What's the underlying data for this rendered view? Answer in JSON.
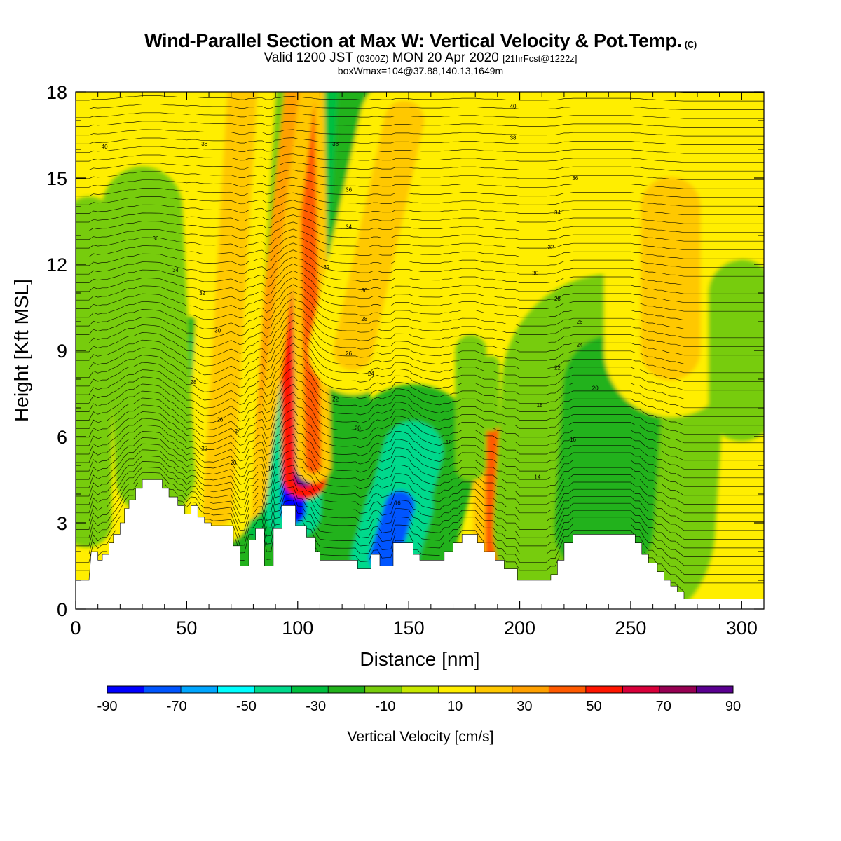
{
  "title": "Wind-Parallel Section at Max W: Vertical Velocity & Pot.Temp.",
  "copyright_mark": "(C)",
  "subtitle": {
    "valid": "Valid 1200 JST",
    "utc": "(0300Z)",
    "date": "MON 20 Apr 2020",
    "forecast": "[21hrFcst@1222z]"
  },
  "box_info": "boxWmax=104@37.88,140.13,1649m",
  "chart_data": {
    "type": "heatmap",
    "xlabel": "Distance [nm]",
    "ylabel": "Height [Kft MSL]",
    "xlim": [
      0,
      310
    ],
    "ylim": [
      0,
      18
    ],
    "x_ticks": [
      0,
      50,
      100,
      150,
      200,
      250,
      300
    ],
    "y_ticks": [
      0,
      3,
      6,
      9,
      12,
      15,
      18
    ],
    "colorbar": {
      "label": "Vertical Velocity [cm/s]",
      "ticks": [
        -90,
        -70,
        -50,
        -30,
        -10,
        10,
        30,
        50,
        70,
        90
      ],
      "bounds": [
        -90,
        90
      ],
      "colors": [
        "#0000ff",
        "#0055ff",
        "#00a6ff",
        "#00ffff",
        "#00d98c",
        "#00bf3f",
        "#22b21c",
        "#77cc0c",
        "#c7e800",
        "#ffee00",
        "#ffc800",
        "#ffa000",
        "#ff5a00",
        "#ff1500",
        "#d8003a",
        "#960052",
        "#5a0090"
      ]
    },
    "terrain_kft": [
      [
        0,
        1.0
      ],
      [
        6,
        1.0
      ],
      [
        7,
        2.0
      ],
      [
        10,
        2.0
      ],
      [
        10,
        1.7
      ],
      [
        12,
        1.7
      ],
      [
        12,
        1.9
      ],
      [
        15,
        1.9
      ],
      [
        15,
        2.3
      ],
      [
        17,
        2.3
      ],
      [
        17,
        2.6
      ],
      [
        20,
        2.6
      ],
      [
        20,
        3.0
      ],
      [
        22,
        3.0
      ],
      [
        22,
        3.5
      ],
      [
        24,
        3.5
      ],
      [
        24,
        3.8
      ],
      [
        27,
        3.8
      ],
      [
        27,
        4.2
      ],
      [
        30,
        4.2
      ],
      [
        30,
        4.5
      ],
      [
        39,
        4.5
      ],
      [
        39,
        4.2
      ],
      [
        42,
        4.2
      ],
      [
        42,
        3.9
      ],
      [
        46,
        3.9
      ],
      [
        46,
        3.6
      ],
      [
        49,
        3.6
      ],
      [
        49,
        3.3
      ],
      [
        52,
        3.3
      ],
      [
        52,
        3.6
      ],
      [
        55,
        3.6
      ],
      [
        55,
        3.2
      ],
      [
        58,
        3.2
      ],
      [
        58,
        3.0
      ],
      [
        61,
        3.0
      ],
      [
        61,
        2.9
      ],
      [
        71,
        2.9
      ],
      [
        71,
        2.2
      ],
      [
        74,
        2.2
      ],
      [
        74,
        1.5
      ],
      [
        78,
        1.5
      ],
      [
        78,
        2.4
      ],
      [
        81,
        2.4
      ],
      [
        81,
        2.8
      ],
      [
        85,
        2.8
      ],
      [
        85,
        1.5
      ],
      [
        89,
        1.5
      ],
      [
        89,
        2.8
      ],
      [
        93,
        2.8
      ],
      [
        93,
        3.6
      ],
      [
        99,
        3.6
      ],
      [
        99,
        2.9
      ],
      [
        104,
        2.9
      ],
      [
        104,
        2.5
      ],
      [
        108,
        2.5
      ],
      [
        108,
        2.0
      ],
      [
        110,
        2.0
      ],
      [
        110,
        1.7
      ],
      [
        127,
        1.7
      ],
      [
        127,
        1.4
      ],
      [
        133,
        1.4
      ],
      [
        133,
        1.9
      ],
      [
        137,
        1.9
      ],
      [
        137,
        1.5
      ],
      [
        143,
        1.5
      ],
      [
        143,
        2.3
      ],
      [
        152,
        2.3
      ],
      [
        152,
        1.9
      ],
      [
        155,
        1.9
      ],
      [
        155,
        1.7
      ],
      [
        166,
        1.7
      ],
      [
        166,
        2.0
      ],
      [
        170,
        2.0
      ],
      [
        170,
        2.3
      ],
      [
        174,
        2.3
      ],
      [
        174,
        2.6
      ],
      [
        181,
        2.6
      ],
      [
        181,
        2.3
      ],
      [
        184,
        2.3
      ],
      [
        184,
        2.0
      ],
      [
        189,
        2.0
      ],
      [
        189,
        1.7
      ],
      [
        193,
        1.7
      ],
      [
        193,
        1.4
      ],
      [
        199,
        1.4
      ],
      [
        199,
        1.0
      ],
      [
        214,
        1.0
      ],
      [
        214,
        1.2
      ],
      [
        217,
        1.2
      ],
      [
        217,
        1.7
      ],
      [
        220,
        1.7
      ],
      [
        220,
        2.3
      ],
      [
        224,
        2.3
      ],
      [
        224,
        2.6
      ],
      [
        252,
        2.6
      ],
      [
        252,
        2.3
      ],
      [
        255,
        2.3
      ],
      [
        255,
        1.9
      ],
      [
        258,
        1.9
      ],
      [
        258,
        1.6
      ],
      [
        262,
        1.6
      ],
      [
        262,
        1.3
      ],
      [
        265,
        1.3
      ],
      [
        265,
        1.0
      ],
      [
        268,
        1.0
      ],
      [
        268,
        0.8
      ],
      [
        271,
        0.8
      ],
      [
        271,
        0.6
      ],
      [
        274,
        0.6
      ],
      [
        274,
        0.35
      ],
      [
        310,
        0.35
      ]
    ],
    "vertical_velocity_features_cm_s": [
      {
        "x0": 90,
        "z0": 3.6,
        "x1": 100,
        "z1": 18,
        "w": 80,
        "value": -35
      },
      {
        "x0": 98,
        "z0": 3.4,
        "x1": 99,
        "z1": 8.5,
        "w": 25,
        "value": -80
      },
      {
        "x0": 103,
        "z0": 4.6,
        "x1": 101,
        "z1": 18,
        "w": 20,
        "value": 104
      },
      {
        "x0": 107,
        "z0": 5.0,
        "x1": 104,
        "z1": 18,
        "w": 16,
        "value": 45
      },
      {
        "x0": 73,
        "z0": 4.0,
        "x1": 95,
        "z1": 18,
        "w": 26,
        "value": 30
      },
      {
        "x0": 70,
        "z0": 5.2,
        "x1": 77,
        "z1": 9.5,
        "w": 9,
        "value": 40
      },
      {
        "x0": 62,
        "z0": 3.0,
        "x1": 82,
        "z1": 18,
        "w": 24,
        "value": -25
      },
      {
        "x0": 56,
        "z0": 3.4,
        "x1": 50,
        "z1": 9.0,
        "w": 30,
        "value": -35
      },
      {
        "x0": 64,
        "z0": 3.4,
        "x1": 75,
        "z1": 18,
        "w": 30,
        "value": 25
      },
      {
        "x0": 36,
        "z0": 4.6,
        "x1": 30,
        "z1": 14,
        "w": 36,
        "value": -15
      },
      {
        "x0": 5,
        "z0": 3.0,
        "x1": 6,
        "z1": 13.5,
        "w": 22,
        "value": -15
      },
      {
        "x0": 138,
        "z0": 1.5,
        "x1": 152,
        "z1": 5.5,
        "w": 60,
        "value": -40
      },
      {
        "x0": 139,
        "z0": 1.8,
        "x1": 146,
        "z1": 3.6,
        "w": 30,
        "value": -70
      },
      {
        "x0": 189,
        "z0": 1.5,
        "x1": 189,
        "z1": 6.0,
        "w": 20,
        "value": 45
      },
      {
        "x0": 238,
        "z0": 2.8,
        "x1": 242,
        "z1": 7.8,
        "w": 100,
        "value": -25
      },
      {
        "x0": 178,
        "z0": 5.0,
        "x1": 178,
        "z1": 9.0,
        "w": 14,
        "value": -12
      },
      {
        "x0": 187,
        "z0": 6.5,
        "x1": 187,
        "z1": 8.5,
        "w": 8,
        "value": -10
      },
      {
        "x0": 125,
        "z0": 9.0,
        "x1": 148,
        "z1": 17.0,
        "w": 40,
        "value": 22
      },
      {
        "x0": 268,
        "z0": 9.0,
        "x1": 268,
        "z1": 14.0,
        "w": 60,
        "value": 20
      },
      {
        "x0": 300,
        "z0": 7.0,
        "x1": 300,
        "z1": 11.0,
        "w": 30,
        "value": -10
      }
    ],
    "contour_labels": [
      {
        "text": "40",
        "x": 197,
        "z": 17.5
      },
      {
        "text": "40",
        "x": 13,
        "z": 16.1
      },
      {
        "text": "38",
        "x": 58,
        "z": 16.2
      },
      {
        "text": "38",
        "x": 117,
        "z": 16.2
      },
      {
        "text": "38",
        "x": 197,
        "z": 16.4
      },
      {
        "text": "36",
        "x": 123,
        "z": 14.6
      },
      {
        "text": "36",
        "x": 225,
        "z": 15.0
      },
      {
        "text": "36",
        "x": 36,
        "z": 12.9
      },
      {
        "text": "34",
        "x": 123,
        "z": 13.3
      },
      {
        "text": "34",
        "x": 217,
        "z": 13.8
      },
      {
        "text": "34",
        "x": 45,
        "z": 11.8
      },
      {
        "text": "32",
        "x": 113,
        "z": 11.9
      },
      {
        "text": "32",
        "x": 214,
        "z": 12.6
      },
      {
        "text": "32",
        "x": 57,
        "z": 11.0
      },
      {
        "text": "30",
        "x": 130,
        "z": 11.1
      },
      {
        "text": "30",
        "x": 207,
        "z": 11.7
      },
      {
        "text": "30",
        "x": 64,
        "z": 9.7
      },
      {
        "text": "28",
        "x": 130,
        "z": 10.1
      },
      {
        "text": "28",
        "x": 217,
        "z": 10.8
      },
      {
        "text": "28",
        "x": 53,
        "z": 7.9
      },
      {
        "text": "26",
        "x": 123,
        "z": 8.9
      },
      {
        "text": "26",
        "x": 227,
        "z": 10.0
      },
      {
        "text": "26",
        "x": 65,
        "z": 6.6
      },
      {
        "text": "24",
        "x": 133,
        "z": 8.2
      },
      {
        "text": "24",
        "x": 227,
        "z": 9.2
      },
      {
        "text": "24",
        "x": 73,
        "z": 6.2
      },
      {
        "text": "22",
        "x": 117,
        "z": 7.3
      },
      {
        "text": "22",
        "x": 217,
        "z": 8.4
      },
      {
        "text": "22",
        "x": 58,
        "z": 5.6
      },
      {
        "text": "20",
        "x": 127,
        "z": 6.3
      },
      {
        "text": "20",
        "x": 234,
        "z": 7.7
      },
      {
        "text": "20",
        "x": 71,
        "z": 5.1
      },
      {
        "text": "18",
        "x": 88,
        "z": 4.9
      },
      {
        "text": "18",
        "x": 168,
        "z": 5.8
      },
      {
        "text": "18",
        "x": 209,
        "z": 7.1
      },
      {
        "text": "16",
        "x": 145,
        "z": 3.7
      },
      {
        "text": "16",
        "x": 224,
        "z": 5.9
      },
      {
        "text": "14",
        "x": 208,
        "z": 4.6
      }
    ]
  }
}
